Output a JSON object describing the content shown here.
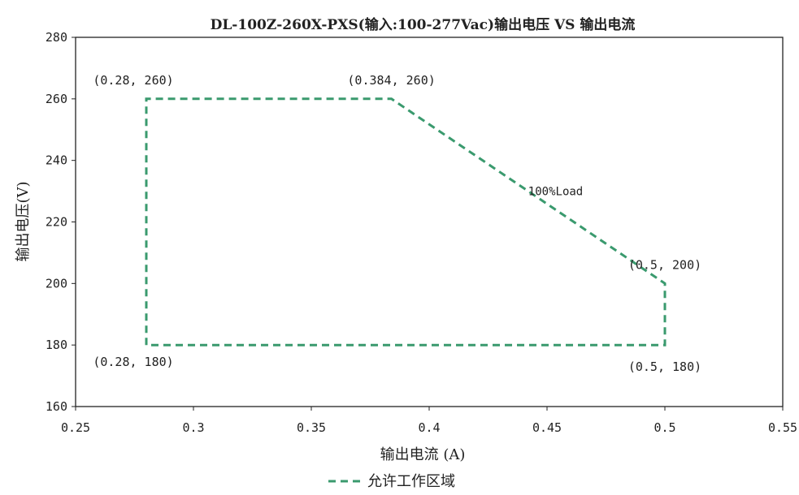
{
  "chart_data": {
    "type": "line",
    "title": "DL-100Z-260X-PXS(输入:100-277Vac)输出电压 VS 输出电流",
    "xlabel": "输出电流 (A)",
    "ylabel": "输出电压(V)",
    "xlim": [
      0.25,
      0.55
    ],
    "ylim": [
      160,
      280
    ],
    "x_ticks": [
      "0.25",
      "0.3",
      "0.35",
      "0.4",
      "0.45",
      "0.5",
      "0.55"
    ],
    "y_ticks": [
      "160",
      "180",
      "200",
      "220",
      "240",
      "260",
      "280"
    ],
    "grid": false,
    "legend_position": "bottom",
    "series": [
      {
        "name": "允许工作区域",
        "color": "#3a9a6e",
        "line_style": "dashed",
        "points": [
          {
            "x": 0.28,
            "y": 180
          },
          {
            "x": 0.28,
            "y": 260
          },
          {
            "x": 0.384,
            "y": 260
          },
          {
            "x": 0.5,
            "y": 200
          },
          {
            "x": 0.5,
            "y": 180
          },
          {
            "x": 0.28,
            "y": 180
          }
        ]
      }
    ],
    "annotations": [
      {
        "text": "(0.28, 260)",
        "x": 0.28,
        "y": 260,
        "anchor": "above-left"
      },
      {
        "text": "(0.384, 260)",
        "x": 0.384,
        "y": 260,
        "anchor": "above"
      },
      {
        "text": "100%Load",
        "x": 0.442,
        "y": 230,
        "anchor": "right"
      },
      {
        "text": "(0.5, 200)",
        "x": 0.5,
        "y": 200,
        "anchor": "above"
      },
      {
        "text": "(0.28, 180)",
        "x": 0.28,
        "y": 180,
        "anchor": "below-left"
      },
      {
        "text": "(0.5, 180)",
        "x": 0.5,
        "y": 180,
        "anchor": "below"
      }
    ]
  }
}
